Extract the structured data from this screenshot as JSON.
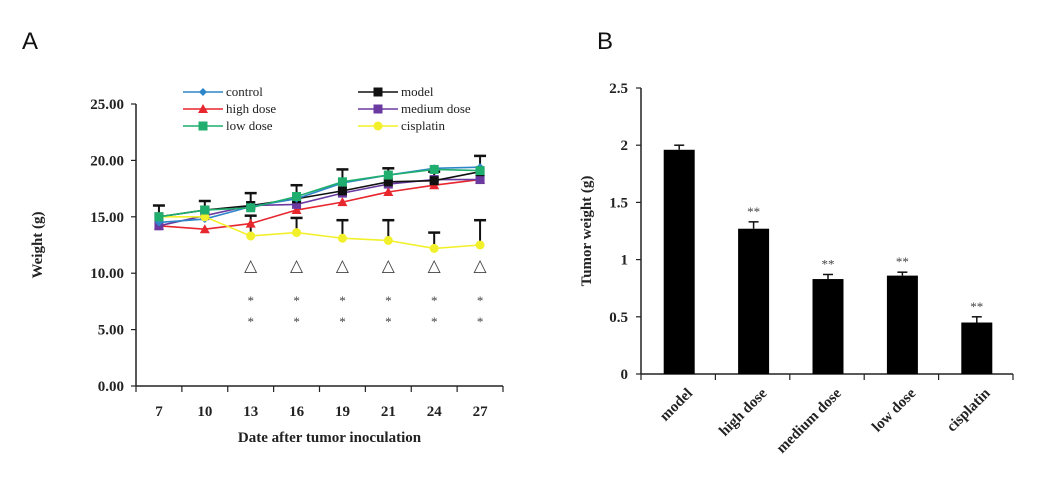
{
  "panels": {
    "a_label": "A",
    "b_label": "B"
  },
  "chart_data": [
    {
      "type": "line",
      "title": "",
      "xlabel": "Date after  tumor  inoculation",
      "ylabel": "Weight (g)",
      "x": [
        "7",
        "10",
        "13",
        "16",
        "19",
        "21",
        "24",
        "27"
      ],
      "ylim": [
        0,
        25
      ],
      "yticks": [
        "0.00",
        "5.00",
        "10.00",
        "15.00",
        "20.00",
        "25.00"
      ],
      "legend_position": "top",
      "series": [
        {
          "name": "control",
          "color": "#2e86c8",
          "marker": "diamond",
          "values": [
            14.5,
            14.8,
            15.9,
            16.6,
            18.0,
            18.7,
            19.3,
            19.4
          ]
        },
        {
          "name": "model",
          "color": "#111111",
          "marker": "square",
          "values": [
            15.0,
            15.6,
            16.0,
            16.6,
            17.3,
            18.1,
            18.2,
            19.0
          ],
          "error": [
            1.0,
            0.8,
            1.1,
            1.2,
            1.9,
            1.2,
            0.8,
            1.4
          ]
        },
        {
          "name": "high dose",
          "color": "#e8262e",
          "marker": "triangle",
          "values": [
            14.2,
            13.9,
            14.4,
            15.6,
            16.3,
            17.2,
            17.8,
            18.3
          ]
        },
        {
          "name": "medium dose",
          "color": "#6a3aa0",
          "marker": "square",
          "values": [
            14.2,
            15.1,
            16.0,
            16.1,
            17.1,
            17.9,
            18.3,
            18.3
          ]
        },
        {
          "name": "low dose",
          "color": "#1fae6e",
          "marker": "square",
          "values": [
            15.0,
            15.6,
            15.8,
            16.8,
            18.1,
            18.7,
            19.2,
            19.1
          ]
        },
        {
          "name": "cisplatin",
          "color": "#f2f02a",
          "marker": "circle",
          "values": [
            15.0,
            15.0,
            13.3,
            13.6,
            13.1,
            12.9,
            12.2,
            12.5
          ],
          "error": [
            0,
            0,
            1.8,
            1.3,
            1.6,
            1.8,
            1.4,
            2.2
          ]
        }
      ],
      "annotations": {
        "triangle_marks_at": [
          "13",
          "16",
          "19",
          "21",
          "24",
          "27"
        ],
        "triangle_glyph": "△",
        "star_marks_at": [
          "13",
          "16",
          "19",
          "21",
          "24",
          "27"
        ],
        "star_glyph": "*"
      }
    },
    {
      "type": "bar",
      "title": "",
      "xlabel": "",
      "ylabel": "Tumor  weight  (g)",
      "categories": [
        "model",
        "high dose",
        "medium dose",
        "low dose",
        "cisplatin"
      ],
      "values": [
        1.96,
        1.27,
        0.83,
        0.86,
        0.45
      ],
      "errors": [
        0.04,
        0.06,
        0.04,
        0.03,
        0.05
      ],
      "significance": [
        "",
        "**",
        "**",
        "**",
        "**"
      ],
      "ylim": [
        0,
        2.5
      ],
      "yticks": [
        "0",
        "0.5",
        "1",
        "1.5",
        "2",
        "2.5"
      ],
      "bar_color": "#000000"
    }
  ]
}
